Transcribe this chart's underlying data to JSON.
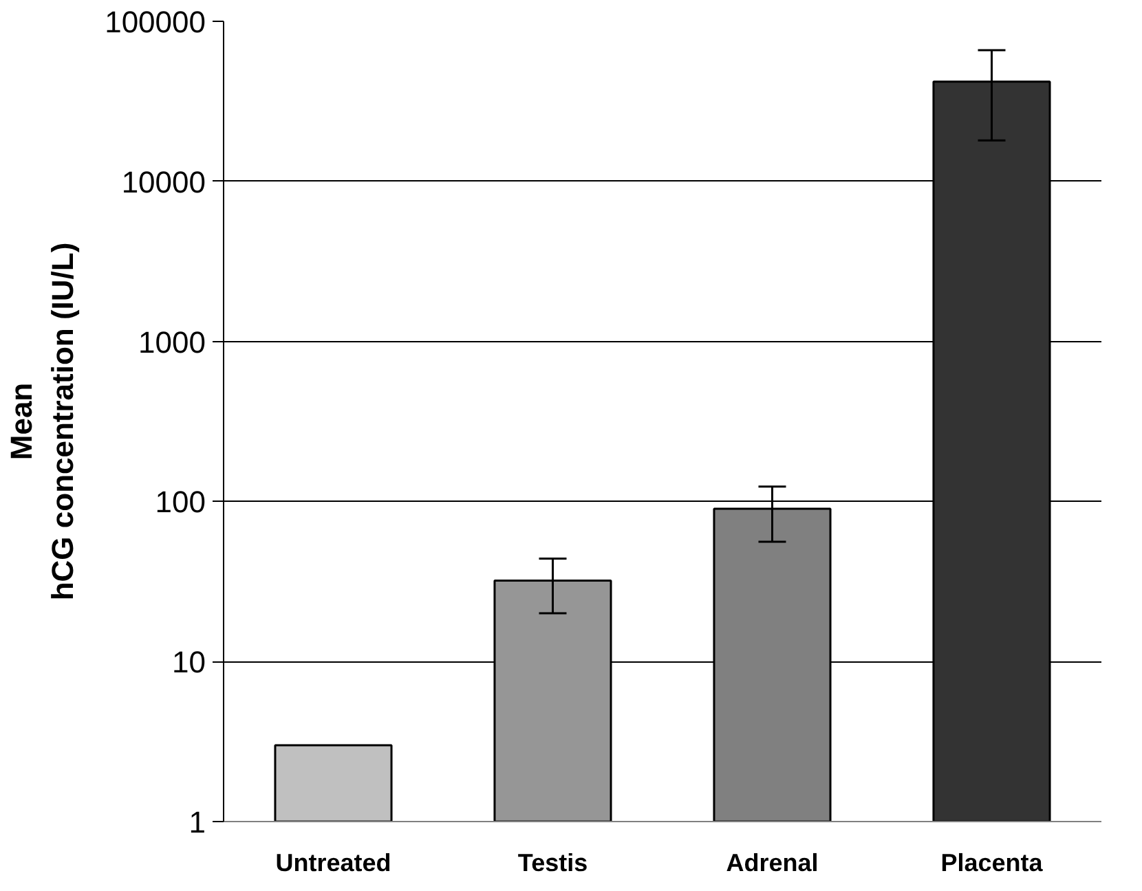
{
  "chart_data": {
    "type": "bar",
    "ylabel": "Mean\nhCG concentration (IU/L)",
    "categories": [
      "Untreated",
      "Testis",
      "Adrenal",
      "Placenta"
    ],
    "values": [
      3,
      32,
      90,
      42000
    ],
    "colors": [
      "#c0c0c0",
      "#969696",
      "#808080",
      "#333333"
    ],
    "errors": [
      null,
      12,
      34,
      24000
    ],
    "log": true,
    "ylim": [
      1,
      100000
    ],
    "yticks": [
      1,
      10,
      100,
      1000,
      10000,
      100000
    ],
    "grid": "y"
  }
}
